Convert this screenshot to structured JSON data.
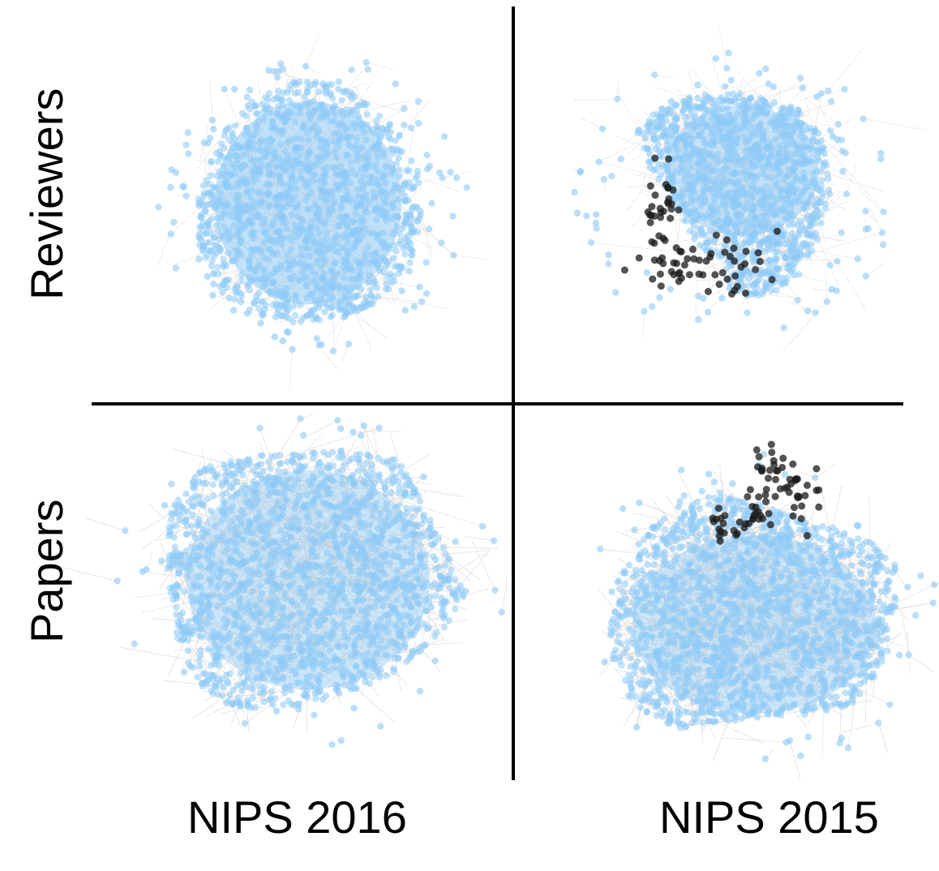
{
  "columns": [
    "NIPS 2016",
    "NIPS 2015"
  ],
  "rows": [
    "Reviewers",
    "Papers"
  ],
  "colors": {
    "node": "#8ecaf7",
    "highlight": "#1a1a1a",
    "edge": "#b9a79a",
    "divider": "#000000"
  },
  "legend": "none"
}
